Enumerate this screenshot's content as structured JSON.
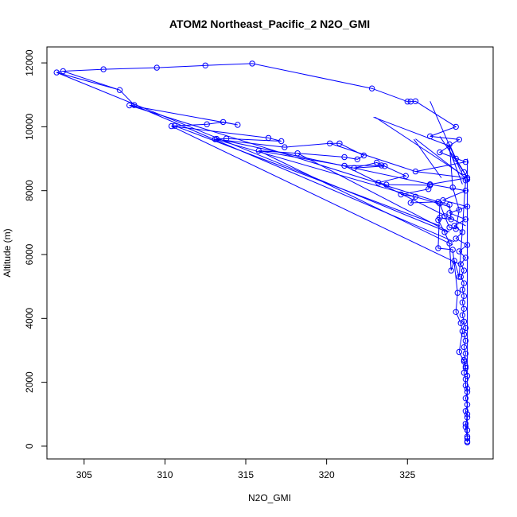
{
  "chart_data": {
    "type": "line",
    "title": "ATOM2 Northeast_Pacific_2 N2O_GMI",
    "xlabel": "N2O_GMI",
    "ylabel": "Altitude (m)",
    "xlim": [
      302.7,
      330.3
    ],
    "ylim": [
      -400,
      12500
    ],
    "xticks": [
      305,
      310,
      315,
      320,
      325
    ],
    "yticks": [
      0,
      2000,
      4000,
      6000,
      8000,
      10000,
      12000
    ],
    "grid": false,
    "markers": "open-circle",
    "color": "#0000ff",
    "series": [
      {
        "values_xy": [
          [
            328.7,
            150
          ],
          [
            328.7,
            300
          ],
          [
            328.7,
            500
          ],
          [
            328.6,
            700
          ],
          [
            328.7,
            900
          ],
          [
            328.6,
            1100
          ],
          [
            328.7,
            1300
          ],
          [
            328.6,
            1500
          ],
          [
            328.7,
            1700
          ],
          [
            328.6,
            1900
          ],
          [
            328.6,
            2100
          ],
          [
            328.5,
            2300
          ],
          [
            328.6,
            2500
          ],
          [
            328.5,
            2700
          ],
          [
            328.6,
            2900
          ],
          [
            328.5,
            3100
          ],
          [
            328.6,
            3300
          ],
          [
            328.5,
            3500
          ],
          [
            328.6,
            3700
          ],
          [
            328.5,
            3900
          ],
          [
            328.4,
            4100
          ],
          [
            328.5,
            4300
          ],
          [
            328.4,
            4500
          ],
          [
            328.5,
            4700
          ],
          [
            328.4,
            4900
          ],
          [
            328.5,
            5100
          ],
          [
            328.3,
            5300
          ],
          [
            328.5,
            5500
          ],
          [
            328.3,
            5700
          ],
          [
            328.6,
            5900
          ],
          [
            328.2,
            6100
          ],
          [
            328.7,
            6300
          ],
          [
            328.0,
            6500
          ],
          [
            328.4,
            6700
          ],
          [
            327.9,
            6900
          ],
          [
            328.6,
            7100
          ],
          [
            327.6,
            7300
          ],
          [
            328.7,
            7500
          ],
          [
            327.2,
            7700
          ],
          [
            328.6,
            8000
          ],
          [
            326.4,
            8200
          ],
          [
            328.7,
            8400
          ],
          [
            325.5,
            8600
          ],
          [
            328.6,
            8900
          ],
          [
            327.0,
            9200
          ],
          [
            328.2,
            9600
          ],
          [
            326.4,
            9700
          ],
          [
            328.0,
            10000
          ],
          [
            325.5,
            10800
          ],
          [
            325.2,
            10790
          ],
          [
            325.0,
            10790
          ],
          [
            322.8,
            11200
          ],
          [
            315.4,
            11980
          ],
          [
            312.5,
            11920
          ],
          [
            309.5,
            11850
          ],
          [
            306.2,
            11800
          ],
          [
            303.7,
            11740
          ],
          [
            303.3,
            11700
          ],
          [
            307.2,
            11150
          ],
          [
            308.1,
            10680
          ],
          [
            307.8,
            10670
          ],
          [
            314.5,
            10060
          ],
          [
            313.6,
            10150
          ],
          [
            312.6,
            10080
          ],
          [
            310.6,
            10030
          ],
          [
            310.4,
            10020
          ],
          [
            316.4,
            9650
          ],
          [
            317.2,
            9550
          ],
          [
            313.8,
            9630
          ],
          [
            313.2,
            9620
          ],
          [
            313.1,
            9610
          ],
          [
            317.4,
            9360
          ],
          [
            320.2,
            9480
          ],
          [
            320.8,
            9480
          ],
          [
            322.3,
            9100
          ],
          [
            321.9,
            8980
          ],
          [
            321.1,
            9050
          ],
          [
            318.2,
            9170
          ],
          [
            315.8,
            9250
          ],
          [
            321.1,
            8780
          ],
          [
            323.4,
            8790
          ],
          [
            323.6,
            8770
          ],
          [
            321.7,
            8710
          ],
          [
            323.1,
            8880
          ],
          [
            324.9,
            8460
          ],
          [
            323.2,
            8250
          ],
          [
            323.7,
            8190
          ],
          [
            326.4,
            8170
          ],
          [
            326.3,
            8050
          ],
          [
            324.6,
            7880
          ],
          [
            325.5,
            7810
          ],
          [
            325.2,
            7620
          ],
          [
            326.9,
            7650
          ],
          [
            327.6,
            7560
          ],
          [
            327.7,
            7100
          ],
          [
            327.0,
            7150
          ],
          [
            326.9,
            7080
          ],
          [
            327.3,
            6700
          ],
          [
            327.6,
            6350
          ],
          [
            327.7,
            5500
          ],
          [
            327.9,
            5800
          ],
          [
            328.2,
            5300
          ],
          [
            328.6,
            8320
          ],
          [
            328.7,
            8350
          ],
          [
            328.5,
            8580
          ],
          [
            328.0,
            9000
          ],
          [
            327.6,
            9450
          ],
          [
            327.8,
            8100
          ],
          [
            328.2,
            7400
          ],
          [
            328.0,
            6800
          ],
          [
            327.6,
            6850
          ],
          [
            327.3,
            7200
          ],
          [
            327.0,
            7600
          ],
          [
            326.9,
            6200
          ],
          [
            327.8,
            6150
          ],
          [
            328.1,
            4800
          ],
          [
            328.0,
            4200
          ],
          [
            328.3,
            3850
          ],
          [
            328.4,
            3600
          ],
          [
            328.2,
            2950
          ],
          [
            328.5,
            2650
          ],
          [
            328.6,
            2450
          ],
          [
            328.7,
            2200
          ],
          [
            328.7,
            1800
          ],
          [
            328.7,
            1000
          ],
          [
            328.6,
            600
          ],
          [
            328.7,
            250
          ],
          [
            328.7,
            120
          ]
        ]
      }
    ],
    "segments": [
      [
        [
          328.7,
          150
        ],
        [
          328.7,
          9000
        ]
      ],
      [
        [
          326.4,
          10800
        ],
        [
          328.3,
          8600
        ]
      ],
      [
        [
          323.0,
          10300
        ],
        [
          328.4,
          8500
        ]
      ],
      [
        [
          322.9,
          10300
        ],
        [
          327.6,
          9400
        ]
      ],
      [
        [
          303.3,
          11700
        ],
        [
          327.5,
          6700
        ]
      ],
      [
        [
          303.7,
          11740
        ],
        [
          307.2,
          11150
        ]
      ],
      [
        [
          308.1,
          10670
        ],
        [
          327.9,
          6400
        ]
      ],
      [
        [
          307.8,
          10670
        ],
        [
          326.9,
          7650
        ]
      ],
      [
        [
          310.4,
          10020
        ],
        [
          328.2,
          5700
        ]
      ],
      [
        [
          310.6,
          10030
        ],
        [
          327.0,
          6900
        ]
      ],
      [
        [
          313.1,
          9610
        ],
        [
          327.6,
          7500
        ]
      ],
      [
        [
          313.2,
          9620
        ],
        [
          326.4,
          8200
        ]
      ],
      [
        [
          315.8,
          9250
        ],
        [
          327.8,
          6300
        ]
      ],
      [
        [
          318.2,
          9170
        ],
        [
          327.6,
          6700
        ]
      ],
      [
        [
          320.2,
          9480
        ],
        [
          325.5,
          8600
        ]
      ],
      [
        [
          321.1,
          8780
        ],
        [
          328.6,
          6900
        ]
      ],
      [
        [
          325.5,
          9620
        ],
        [
          328.6,
          8400
        ]
      ],
      [
        [
          325.4,
          9610
        ],
        [
          327.1,
          8400
        ]
      ],
      [
        [
          327.0,
          9700
        ],
        [
          328.7,
          8420
        ]
      ],
      [
        [
          327.5,
          9400
        ],
        [
          328.4,
          8200
        ]
      ]
    ]
  }
}
